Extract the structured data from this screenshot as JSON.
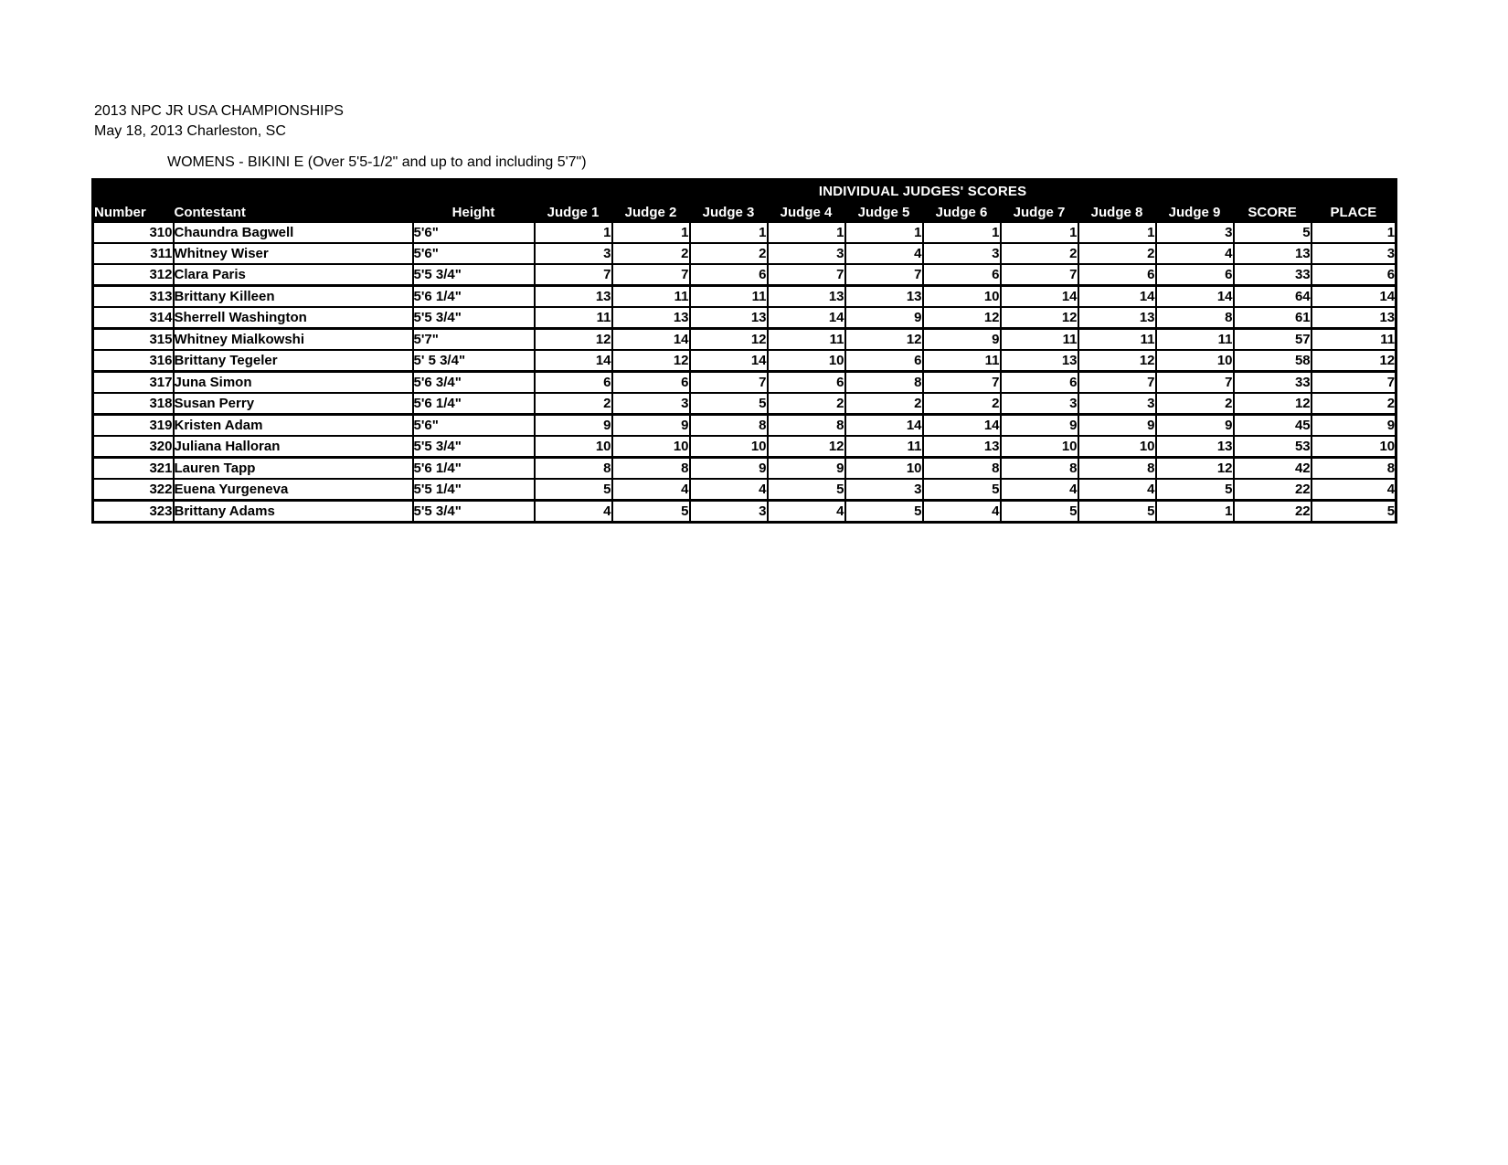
{
  "header": {
    "title": "2013 NPC JR USA CHAMPIONSHIPS",
    "date_location": "May 18, 2013 Charleston, SC",
    "class_line": "WOMENS - BIKINI E (Over 5'5-1/2\" and up to and including 5'7\")"
  },
  "colors": {
    "header_bg": "#000000",
    "header_text": "#ffffff",
    "border": "#000000",
    "text": "#000000",
    "page_bg": "#ffffff"
  },
  "table": {
    "group_header": "INDIVIDUAL JUDGES'  SCORES",
    "columns": [
      "Number",
      "Contestant",
      "Height",
      "Judge 1",
      "Judge 2",
      "Judge 3",
      "Judge 4",
      "Judge 5",
      "Judge 6",
      "Judge 7",
      "Judge 8",
      "Judge 9",
      "SCORE",
      "PLACE"
    ],
    "rows": [
      {
        "number": 310,
        "contestant": "Chaundra Bagwell",
        "height": "5'6\"",
        "judges": [
          1,
          1,
          1,
          1,
          1,
          1,
          1,
          1,
          3
        ],
        "score": 5,
        "place": 1
      },
      {
        "number": 311,
        "contestant": "Whitney Wiser",
        "height": "5'6\"",
        "judges": [
          3,
          2,
          2,
          3,
          4,
          3,
          2,
          2,
          4
        ],
        "score": 13,
        "place": 3
      },
      {
        "number": 312,
        "contestant": "Clara Paris",
        "height": "5'5 3/4\"",
        "judges": [
          7,
          7,
          6,
          7,
          7,
          6,
          7,
          6,
          6
        ],
        "score": 33,
        "place": 6
      },
      {
        "number": 313,
        "contestant": "Brittany Killeen",
        "height": "5'6 1/4\"",
        "judges": [
          13,
          11,
          11,
          13,
          13,
          10,
          14,
          14,
          14
        ],
        "score": 64,
        "place": 14
      },
      {
        "number": 314,
        "contestant": "Sherrell Washington",
        "height": "5'5 3/4\"",
        "judges": [
          11,
          13,
          13,
          14,
          9,
          12,
          12,
          13,
          8
        ],
        "score": 61,
        "place": 13
      },
      {
        "number": 315,
        "contestant": "Whitney Mialkowshi",
        "height": "5'7\"",
        "judges": [
          12,
          14,
          12,
          11,
          12,
          9,
          11,
          11,
          11
        ],
        "score": 57,
        "place": 11
      },
      {
        "number": 316,
        "contestant": "Brittany Tegeler",
        "height": "5' 5 3/4\"",
        "judges": [
          14,
          12,
          14,
          10,
          6,
          11,
          13,
          12,
          10
        ],
        "score": 58,
        "place": 12
      },
      {
        "number": 317,
        "contestant": "Juna Simon",
        "height": "5'6 3/4\"",
        "judges": [
          6,
          6,
          7,
          6,
          8,
          7,
          6,
          7,
          7
        ],
        "score": 33,
        "place": 7
      },
      {
        "number": 318,
        "contestant": "Susan Perry",
        "height": "5'6 1/4\"",
        "judges": [
          2,
          3,
          5,
          2,
          2,
          2,
          3,
          3,
          2
        ],
        "score": 12,
        "place": 2
      },
      {
        "number": 319,
        "contestant": "Kristen Adam",
        "height": "5'6\"",
        "judges": [
          9,
          9,
          8,
          8,
          14,
          14,
          9,
          9,
          9
        ],
        "score": 45,
        "place": 9
      },
      {
        "number": 320,
        "contestant": "Juliana Halloran",
        "height": "5'5 3/4\"",
        "judges": [
          10,
          10,
          10,
          12,
          11,
          13,
          10,
          10,
          13
        ],
        "score": 53,
        "place": 10
      },
      {
        "number": 321,
        "contestant": "Lauren Tapp",
        "height": "5'6 1/4\"",
        "judges": [
          8,
          8,
          9,
          9,
          10,
          8,
          8,
          8,
          12
        ],
        "score": 42,
        "place": 8
      },
      {
        "number": 322,
        "contestant": "Euena Yurgeneva",
        "height": "5'5 1/4\"",
        "judges": [
          5,
          4,
          4,
          5,
          3,
          5,
          4,
          4,
          5
        ],
        "score": 22,
        "place": 4
      },
      {
        "number": 323,
        "contestant": "Brittany Adams",
        "height": "5'5 3/4\"",
        "judges": [
          4,
          5,
          3,
          4,
          5,
          4,
          5,
          5,
          1
        ],
        "score": 22,
        "place": 5
      }
    ]
  }
}
